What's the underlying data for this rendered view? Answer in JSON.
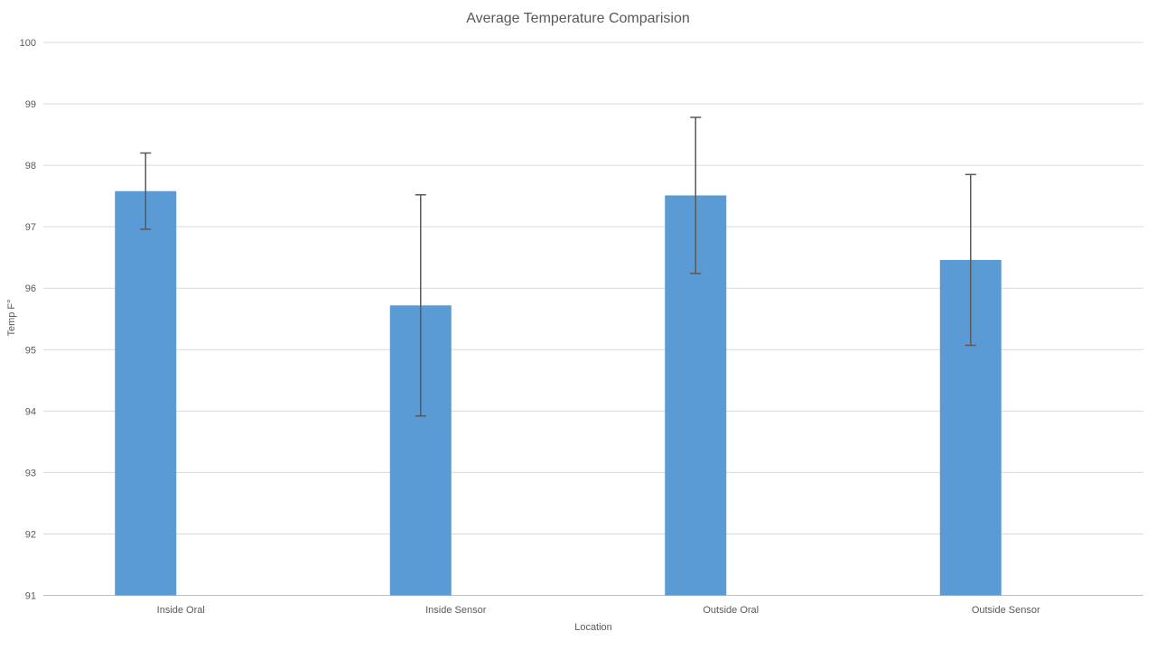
{
  "chart_data": {
    "type": "bar",
    "title": "Average Temperature Comparision",
    "xlabel": "Location",
    "ylabel": "Temp F°",
    "categories": [
      "Inside Oral",
      "Inside Sensor",
      "Outside Oral",
      "Outside Sensor"
    ],
    "values": [
      97.58,
      95.72,
      97.51,
      96.46
    ],
    "error_bars": {
      "upper": [
        98.2,
        97.52,
        98.78,
        97.85
      ],
      "lower": [
        96.96,
        93.92,
        96.24,
        95.07
      ]
    },
    "ylim": [
      91,
      100
    ],
    "ytick_step": 1,
    "yticks": [
      91,
      92,
      93,
      94,
      95,
      96,
      97,
      98,
      99,
      100
    ],
    "grid": true,
    "legend": false,
    "colors": {
      "bar": "#5B9BD5",
      "error_bar": "#595959",
      "gridline": "#D9D9D9",
      "axis_line": "#BFBFBF",
      "text": "#595959",
      "title": "#595959",
      "background": "#FFFFFF"
    }
  }
}
